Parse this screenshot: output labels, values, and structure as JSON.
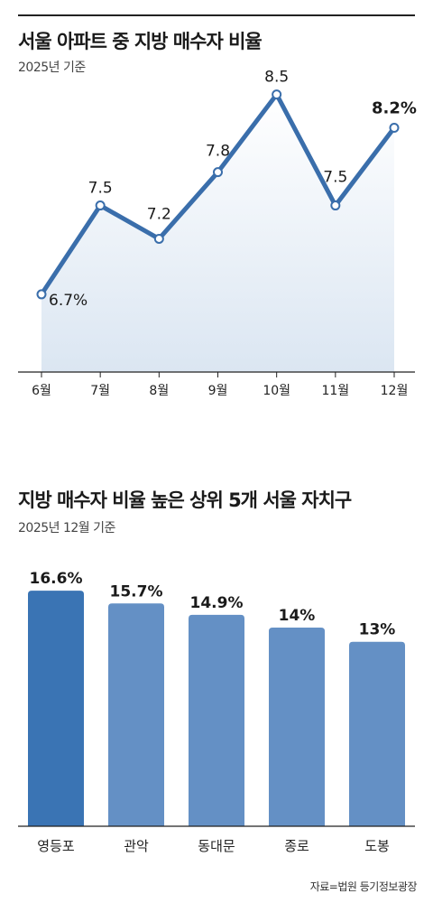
{
  "chart_data": [
    {
      "type": "area",
      "title": "서울 아파트 중 지방 매수자 비율",
      "subtitle": "2025년 기준",
      "categories": [
        "6월",
        "7월",
        "8월",
        "9월",
        "10월",
        "11월",
        "12월"
      ],
      "values": [
        6.7,
        7.5,
        7.2,
        7.8,
        8.5,
        7.5,
        8.2
      ],
      "value_labels": [
        "6.7%",
        "7.5",
        "7.2",
        "7.8",
        "8.5",
        "7.5",
        "8.2%"
      ],
      "ylim": [
        6.0,
        8.7
      ],
      "grid": false,
      "line_color": "#3a6eab",
      "fill_color": "#dbe6f2"
    },
    {
      "type": "bar",
      "title": "지방 매수자 비율 높은 상위 5개 서울 자치구",
      "subtitle": "2025년 12월 기준",
      "categories": [
        "영등포",
        "관악",
        "동대문",
        "종로",
        "도봉"
      ],
      "values": [
        16.6,
        15.7,
        14.9,
        14,
        13
      ],
      "value_labels": [
        "16.6%",
        "15.7%",
        "14.9%",
        "14%",
        "13%"
      ],
      "ylim": [
        0,
        17.5
      ],
      "grid": false,
      "highlight_color": "#3a74b4",
      "bar_color": "#6490c5"
    }
  ],
  "source": "자료=법원 등기정보광장"
}
